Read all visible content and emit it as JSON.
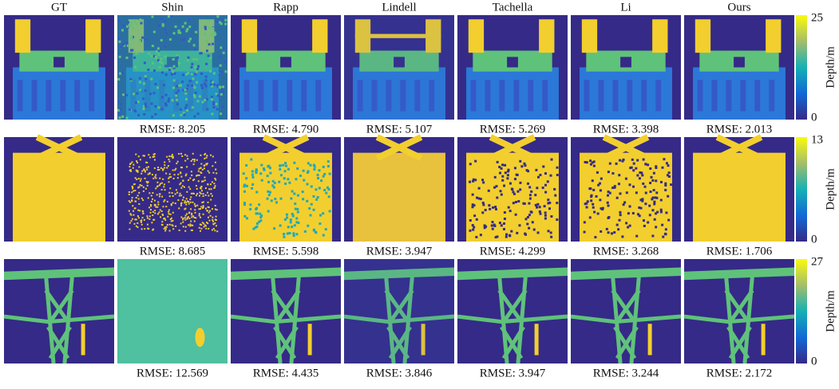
{
  "headers": [
    "GT",
    "Shin",
    "Rapp",
    "Lindell",
    "Tachella",
    "Li",
    "Ours"
  ],
  "rows": [
    {
      "rmse": [
        "RMSE: 8.205",
        "RMSE: 4.790",
        "RMSE: 5.107",
        "RMSE: 5.269",
        "RMSE: 3.398",
        "RMSE: 2.013"
      ],
      "colorbar": {
        "max": "25",
        "min": "0",
        "label": "Depth/m"
      }
    },
    {
      "rmse": [
        "RMSE: 8.685",
        "RMSE: 5.598",
        "RMSE: 3.947",
        "RMSE: 4.299",
        "RMSE: 3.268",
        "RMSE: 1.706"
      ],
      "colorbar": {
        "max": "13",
        "min": "0",
        "label": "Depth/m"
      }
    },
    {
      "rmse": [
        "RMSE: 12.569",
        "RMSE: 4.435",
        "RMSE: 3.846",
        "RMSE: 3.947",
        "RMSE: 3.244",
        "RMSE: 2.172"
      ],
      "colorbar": {
        "max": "27",
        "min": "0",
        "label": "Depth/m"
      }
    }
  ]
}
